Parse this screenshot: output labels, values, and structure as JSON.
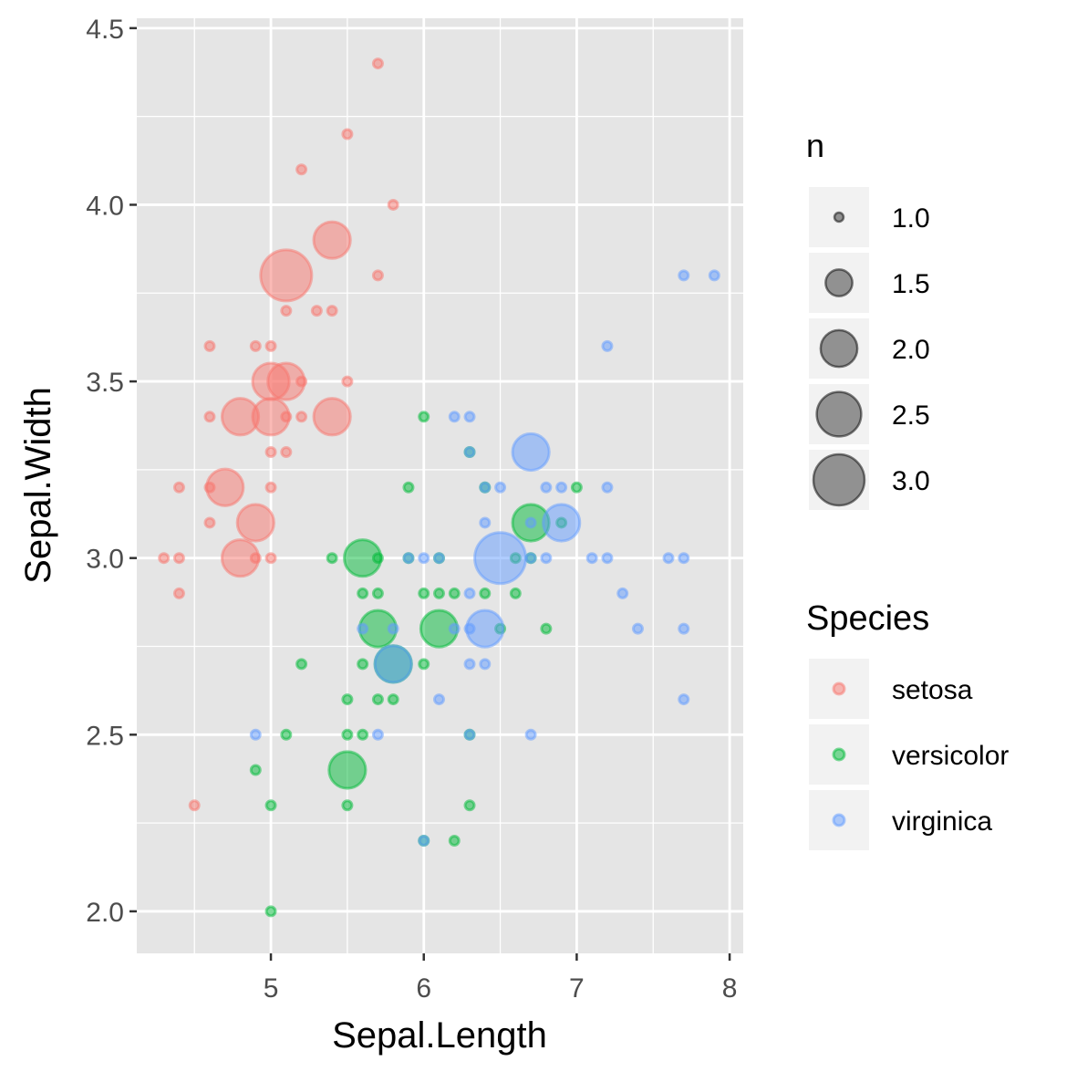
{
  "chart_data": {
    "type": "scatter",
    "xlabel": "Sepal.Length",
    "ylabel": "Sepal.Width",
    "xlim": [
      4.123,
      8.089
    ],
    "ylim": [
      1.881,
      4.528
    ],
    "x_ticks": [
      5,
      6,
      7,
      8
    ],
    "x_tick_labels": [
      "5",
      "6",
      "7",
      "8"
    ],
    "y_ticks": [
      2.0,
      2.5,
      3.0,
      3.5,
      4.0,
      4.5
    ],
    "y_tick_labels": [
      "2.0",
      "2.5",
      "3.0",
      "3.5",
      "4.0",
      "4.5"
    ],
    "grid": true,
    "point_alpha": 0.5,
    "size_legend": {
      "title": "n",
      "values": [
        1.0,
        1.5,
        2.0,
        2.5,
        3.0
      ],
      "labels": [
        "1.0",
        "1.5",
        "2.0",
        "2.5",
        "3.0"
      ],
      "color": "#000000"
    },
    "color_legend": {
      "title": "Species",
      "placement": "right"
    },
    "series": [
      {
        "name": "setosa",
        "color": "#F8766D",
        "points": [
          [
            5.1,
            3.5,
            2
          ],
          [
            4.9,
            3.0,
            1
          ],
          [
            4.7,
            3.2,
            2
          ],
          [
            4.6,
            3.1,
            1
          ],
          [
            5.0,
            3.6,
            1
          ],
          [
            5.4,
            3.9,
            2
          ],
          [
            4.6,
            3.4,
            1
          ],
          [
            5.0,
            3.4,
            2
          ],
          [
            4.4,
            2.9,
            1
          ],
          [
            4.9,
            3.1,
            2
          ],
          [
            5.4,
            3.7,
            1
          ],
          [
            4.8,
            3.4,
            2
          ],
          [
            4.8,
            3.0,
            2
          ],
          [
            4.3,
            3.0,
            1
          ],
          [
            5.8,
            4.0,
            1
          ],
          [
            5.7,
            4.4,
            1
          ],
          [
            5.7,
            3.8,
            1
          ],
          [
            5.1,
            3.8,
            3
          ],
          [
            5.4,
            3.4,
            2
          ],
          [
            5.1,
            3.7,
            1
          ],
          [
            4.6,
            3.6,
            1
          ],
          [
            5.1,
            3.3,
            1
          ],
          [
            5.0,
            3.0,
            1
          ],
          [
            5.2,
            3.5,
            1
          ],
          [
            5.2,
            3.4,
            1
          ],
          [
            5.2,
            4.1,
            1
          ],
          [
            5.5,
            4.2,
            1
          ],
          [
            5.0,
            3.2,
            1
          ],
          [
            5.5,
            3.5,
            1
          ],
          [
            4.9,
            3.6,
            1
          ],
          [
            4.4,
            3.0,
            1
          ],
          [
            5.1,
            3.4,
            1
          ],
          [
            5.0,
            3.5,
            2
          ],
          [
            4.5,
            2.3,
            1
          ],
          [
            4.4,
            3.2,
            1
          ],
          [
            4.6,
            3.2,
            1
          ],
          [
            5.3,
            3.7,
            1
          ],
          [
            5.0,
            3.3,
            1
          ]
        ]
      },
      {
        "name": "versicolor",
        "color": "#00BA38",
        "points": [
          [
            7.0,
            3.2,
            1
          ],
          [
            6.4,
            3.2,
            1
          ],
          [
            6.9,
            3.1,
            1
          ],
          [
            5.5,
            2.3,
            1
          ],
          [
            6.5,
            2.8,
            1
          ],
          [
            5.7,
            2.8,
            2
          ],
          [
            6.3,
            3.3,
            1
          ],
          [
            4.9,
            2.4,
            1
          ],
          [
            6.6,
            2.9,
            1
          ],
          [
            5.2,
            2.7,
            1
          ],
          [
            5.0,
            2.0,
            1
          ],
          [
            5.9,
            3.0,
            1
          ],
          [
            6.0,
            2.2,
            1
          ],
          [
            6.1,
            2.9,
            1
          ],
          [
            5.6,
            2.9,
            1
          ],
          [
            6.7,
            3.1,
            2
          ],
          [
            5.6,
            3.0,
            2
          ],
          [
            5.8,
            2.7,
            2
          ],
          [
            6.2,
            2.2,
            1
          ],
          [
            5.6,
            2.5,
            1
          ],
          [
            5.9,
            3.2,
            1
          ],
          [
            6.1,
            2.8,
            2
          ],
          [
            6.3,
            2.5,
            1
          ],
          [
            6.4,
            2.9,
            1
          ],
          [
            6.6,
            3.0,
            1
          ],
          [
            6.8,
            2.8,
            1
          ],
          [
            6.7,
            3.0,
            1
          ],
          [
            6.0,
            2.9,
            1
          ],
          [
            5.7,
            2.6,
            1
          ],
          [
            5.5,
            2.4,
            2
          ],
          [
            6.0,
            2.7,
            1
          ],
          [
            5.4,
            3.0,
            1
          ],
          [
            6.0,
            3.4,
            1
          ],
          [
            6.3,
            2.3,
            1
          ],
          [
            5.5,
            2.5,
            1
          ],
          [
            5.5,
            2.6,
            1
          ],
          [
            6.1,
            3.0,
            1
          ],
          [
            5.8,
            2.6,
            1
          ],
          [
            5.0,
            2.3,
            1
          ],
          [
            5.6,
            2.7,
            1
          ],
          [
            5.7,
            3.0,
            1
          ],
          [
            5.7,
            2.9,
            1
          ],
          [
            6.2,
            2.9,
            1
          ],
          [
            5.1,
            2.5,
            1
          ]
        ]
      },
      {
        "name": "virginica",
        "color": "#619CFF",
        "points": [
          [
            6.3,
            3.3,
            1
          ],
          [
            5.8,
            2.7,
            2
          ],
          [
            7.1,
            3.0,
            1
          ],
          [
            6.3,
            2.9,
            1
          ],
          [
            6.5,
            3.0,
            3
          ],
          [
            7.6,
            3.0,
            1
          ],
          [
            4.9,
            2.5,
            1
          ],
          [
            7.3,
            2.9,
            1
          ],
          [
            6.7,
            2.5,
            1
          ],
          [
            7.2,
            3.6,
            1
          ],
          [
            6.5,
            3.2,
            1
          ],
          [
            6.4,
            2.7,
            1
          ],
          [
            6.8,
            3.0,
            1
          ],
          [
            5.7,
            2.5,
            1
          ],
          [
            5.8,
            2.8,
            1
          ],
          [
            6.4,
            3.2,
            1
          ],
          [
            7.7,
            3.8,
            1
          ],
          [
            7.7,
            2.6,
            1
          ],
          [
            6.0,
            2.2,
            1
          ],
          [
            6.9,
            3.2,
            1
          ],
          [
            5.6,
            2.8,
            1
          ],
          [
            7.7,
            2.8,
            1
          ],
          [
            6.3,
            2.7,
            1
          ],
          [
            6.7,
            3.3,
            2
          ],
          [
            7.2,
            3.2,
            1
          ],
          [
            6.2,
            2.8,
            1
          ],
          [
            6.1,
            3.0,
            1
          ],
          [
            6.4,
            2.8,
            2
          ],
          [
            7.2,
            3.0,
            1
          ],
          [
            7.4,
            2.8,
            1
          ],
          [
            7.9,
            3.8,
            1
          ],
          [
            6.3,
            2.8,
            1
          ],
          [
            6.1,
            2.6,
            1
          ],
          [
            7.7,
            3.0,
            1
          ],
          [
            6.3,
            3.4,
            1
          ],
          [
            6.4,
            3.1,
            1
          ],
          [
            6.0,
            3.0,
            1
          ],
          [
            6.9,
            3.1,
            2
          ],
          [
            6.7,
            3.1,
            1
          ],
          [
            6.8,
            3.2,
            1
          ],
          [
            6.7,
            3.0,
            1
          ],
          [
            6.3,
            2.5,
            1
          ],
          [
            6.2,
            3.4,
            1
          ],
          [
            5.9,
            3.0,
            1
          ]
        ]
      }
    ]
  }
}
